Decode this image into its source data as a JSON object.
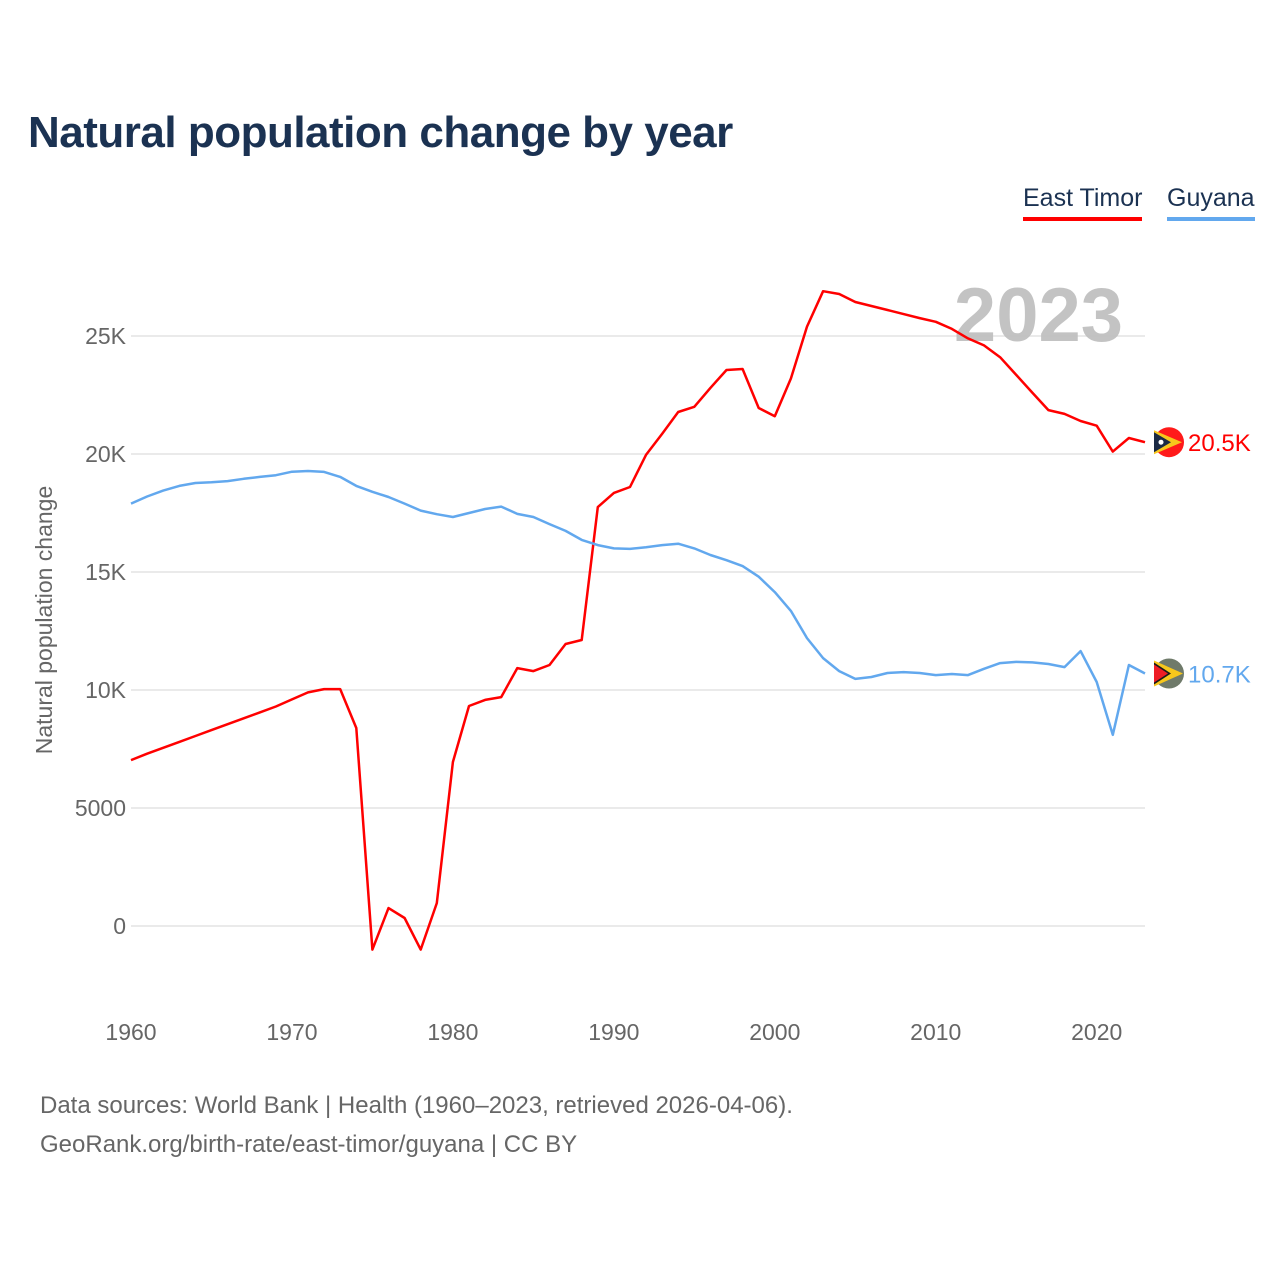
{
  "chart_data": {
    "type": "line",
    "title": "Natural population change by year",
    "ylabel": "Natural population change",
    "xlabel": "",
    "xlim": [
      1960,
      2023
    ],
    "ylim": [
      -2500,
      27500
    ],
    "grid": true,
    "legend_placement": "top-right",
    "year_watermark": "2023",
    "x_ticks": [
      "1960",
      "1970",
      "1980",
      "1990",
      "2000",
      "2010",
      "2020"
    ],
    "y_ticks": [
      {
        "v": 0,
        "label": "0"
      },
      {
        "v": 5000,
        "label": "5000"
      },
      {
        "v": 10000,
        "label": "10K"
      },
      {
        "v": 15000,
        "label": "15K"
      },
      {
        "v": 20000,
        "label": "20K"
      },
      {
        "v": 25000,
        "label": "25K"
      }
    ],
    "x_start": 1960,
    "series": [
      {
        "name": "East Timor",
        "color": "#ff0000",
        "end_label": "20.5K",
        "flag": "east-timor-flag",
        "values": [
          7030,
          7300,
          7550,
          7800,
          8050,
          8300,
          8550,
          8800,
          9050,
          9300,
          9600,
          9900,
          10040,
          10040,
          8390,
          -1000,
          760,
          340,
          -1000,
          970,
          6950,
          9320,
          9580,
          9700,
          10930,
          10800,
          11060,
          11950,
          12120,
          17750,
          18350,
          18600,
          19960,
          20850,
          21780,
          22000,
          22800,
          23560,
          23600,
          21950,
          21600,
          23200,
          25400,
          26900,
          26780,
          26440,
          26270,
          26100,
          25930,
          25760,
          25600,
          25300,
          24900,
          24600,
          24100,
          23350,
          22600,
          21860,
          21700,
          21400,
          21200,
          20100,
          20680,
          20500
        ]
      },
      {
        "name": "Guyana",
        "color": "#62a8ee",
        "end_label": "10.7K",
        "flag": "guyana-flag",
        "values": [
          17900,
          18200,
          18450,
          18650,
          18770,
          18800,
          18850,
          18950,
          19030,
          19100,
          19250,
          19280,
          19240,
          19030,
          18650,
          18400,
          18180,
          17900,
          17600,
          17450,
          17330,
          17500,
          17670,
          17770,
          17460,
          17330,
          17030,
          16740,
          16360,
          16140,
          16000,
          15980,
          16050,
          16140,
          16200,
          16000,
          15720,
          15500,
          15250,
          14800,
          14150,
          13350,
          12200,
          11350,
          10800,
          10470,
          10550,
          10720,
          10760,
          10720,
          10630,
          10680,
          10630,
          10900,
          11140,
          11190,
          11170,
          11100,
          10970,
          11650,
          10340,
          8100,
          11060,
          10700
        ]
      }
    ]
  },
  "footer": {
    "line1": "Data sources: World Bank | Health (1960–2023, retrieved 2026-04-06).",
    "line2": "GeoRank.org/birth-rate/east-timor/guyana | CC BY"
  }
}
